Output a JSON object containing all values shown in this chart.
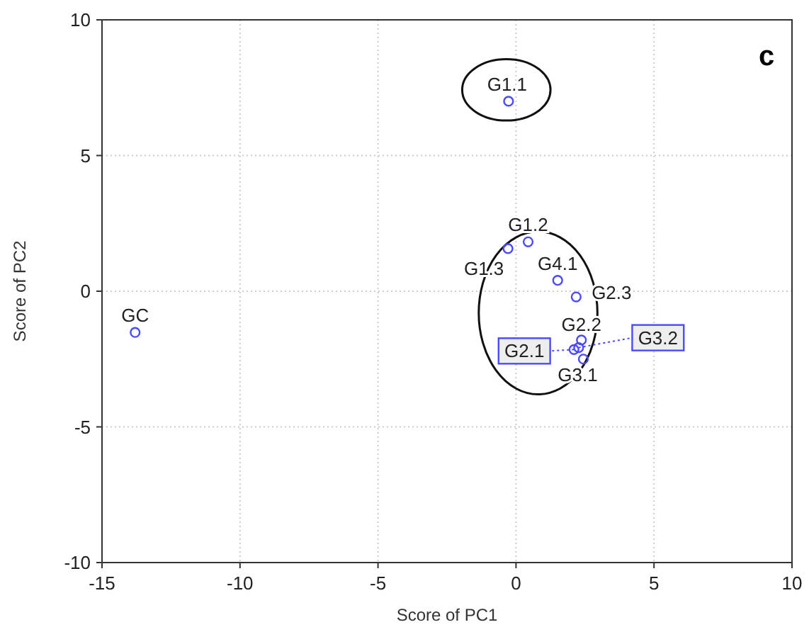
{
  "chart_data": {
    "type": "scatter",
    "xlabel": "Score of PC1",
    "ylabel": "Score of PC2",
    "x": [
      -0.27,
      -13.8,
      -0.29,
      0.44,
      1.51,
      2.18,
      2.37,
      2.1,
      2.27,
      2.44
    ],
    "values": [
      7.0,
      -1.52,
      1.57,
      1.82,
      0.4,
      -0.21,
      -1.8,
      -2.15,
      -2.08,
      -2.5
    ],
    "value_labels": [
      "G1.1",
      "GC",
      "G1.3",
      "G1.2",
      "G4.1",
      "G2.3",
      "G2.2",
      "G2.1",
      "G3.2",
      "G3.1"
    ],
    "color": "#4a4aff",
    "marker": "circle",
    "xlim": [
      -15,
      10
    ],
    "xticks": [
      -15,
      -10,
      -5,
      0,
      5,
      10
    ],
    "ylim": [
      -10,
      10
    ],
    "yticks": [
      -10,
      -5,
      0,
      5,
      10
    ],
    "grid": true,
    "annotations": [
      "c"
    ]
  }
}
